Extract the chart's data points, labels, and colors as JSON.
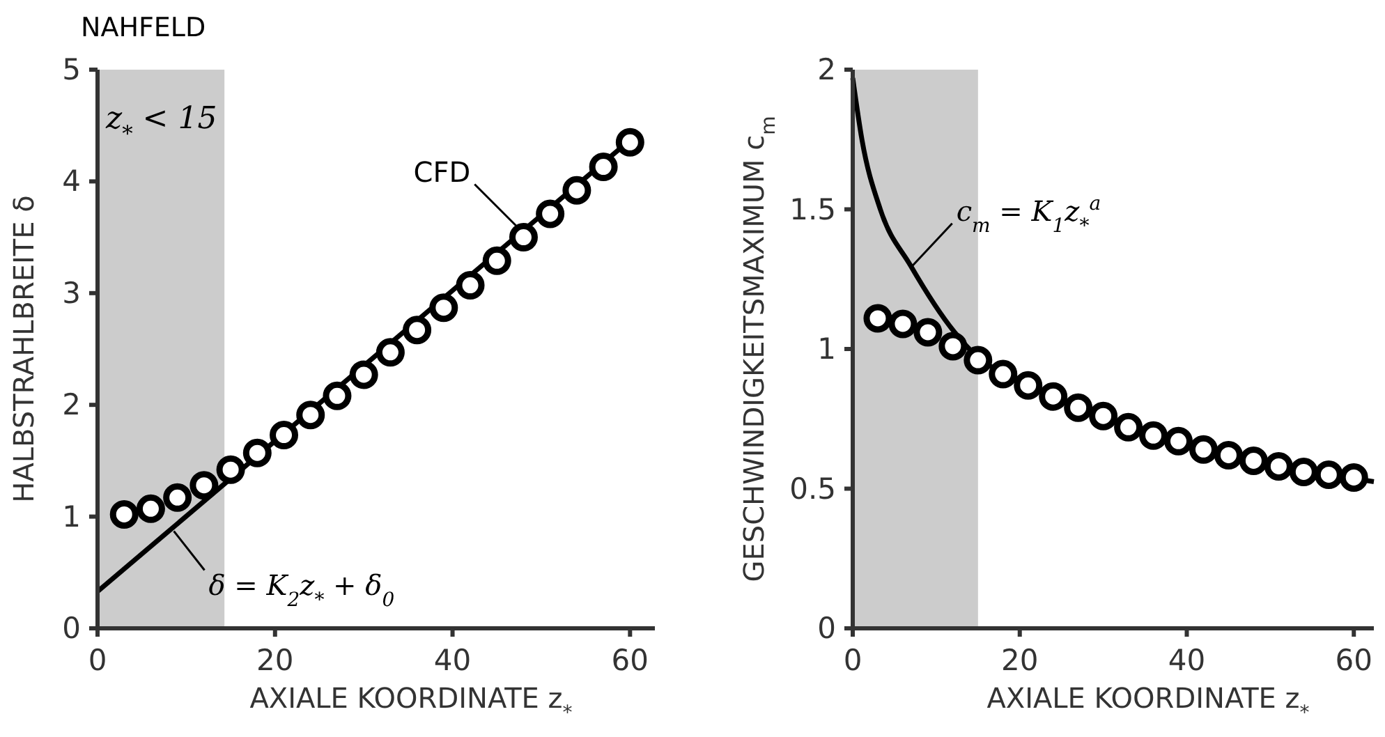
{
  "chart_data": [
    {
      "type": "scatter",
      "title": "NAHFELD",
      "xlabel": "AXIALE KOORDINATE z$_{*}$",
      "ylabel": "HALBSTRAHLBREITE δ",
      "xlim": [
        0,
        62.8
      ],
      "xticks": [
        0,
        20,
        40,
        60
      ],
      "ylim": [
        0,
        5
      ],
      "yticks": [
        0,
        1,
        2,
        3,
        4,
        5
      ],
      "grid": false,
      "bands": [
        {
          "axis": "x",
          "from": 0,
          "to": 14.3,
          "label": "z$_{*}$ < 15",
          "color": "#cccccc"
        }
      ],
      "annotations": [
        {
          "text": "CFD",
          "x": 47.2,
          "y": 3.6
        },
        {
          "text": "δ = K$_{2}$z$_{*}$ + δ$_{0}$",
          "x": 8.6,
          "y": 0.87
        }
      ],
      "series": [
        {
          "type": "line",
          "color": "#000000",
          "x": [
            0,
            60
          ],
          "values": [
            0.33,
            4.37
          ],
          "line_style": "solid"
        },
        {
          "color": "#000000",
          "marker": "circle",
          "x": [
            3,
            6,
            9,
            12,
            15,
            18,
            21,
            24,
            27,
            30,
            33,
            36,
            39,
            42,
            45,
            48,
            51,
            54,
            57,
            60
          ],
          "values": [
            1.02,
            1.07,
            1.17,
            1.28,
            1.42,
            1.57,
            1.73,
            1.91,
            2.08,
            2.27,
            2.47,
            2.67,
            2.87,
            3.07,
            3.29,
            3.5,
            3.71,
            3.92,
            4.13,
            4.35
          ]
        }
      ]
    },
    {
      "type": "scatter",
      "xlabel": "AXIALE KOORDINATE z$_{*}$",
      "ylabel": "GESCHWINDIGKEITSMAXIMUM c$_{m}$",
      "xlim": [
        0,
        62.4
      ],
      "xticks": [
        0,
        20,
        40,
        60
      ],
      "ylim": [
        0,
        2
      ],
      "yticks": [
        0,
        0.5,
        1,
        1.5,
        2
      ],
      "grid": false,
      "bands": [
        {
          "axis": "x",
          "from": 0,
          "to": 15,
          "color": "#cccccc"
        }
      ],
      "annotations": [
        {
          "text": "c$_{m}$ = K$_{1}$z$_{*}$$^{a}$",
          "x": 6.9,
          "y": 1.29
        }
      ],
      "series": [
        {
          "type": "line",
          "color": "#000000",
          "x": [
            0,
            1.1,
            3.3,
            6.9,
            12.2,
            15,
            20,
            30,
            40,
            50,
            60,
            62.4
          ],
          "values": [
            1.97,
            1.75,
            1.5,
            1.3,
            1.06,
            0.97,
            0.89,
            0.755,
            0.66,
            0.585,
            0.536,
            0.525
          ],
          "line_style": "solid"
        },
        {
          "color": "#000000",
          "marker": "circle",
          "x": [
            3,
            6,
            9,
            12,
            15,
            18,
            21,
            24,
            27,
            30,
            33,
            36,
            39,
            42,
            45,
            48,
            51,
            54,
            57,
            60
          ],
          "values": [
            1.11,
            1.09,
            1.06,
            1.01,
            0.96,
            0.91,
            0.87,
            0.83,
            0.79,
            0.76,
            0.72,
            0.69,
            0.67,
            0.64,
            0.62,
            0.6,
            0.58,
            0.56,
            0.55,
            0.54
          ]
        }
      ]
    }
  ]
}
